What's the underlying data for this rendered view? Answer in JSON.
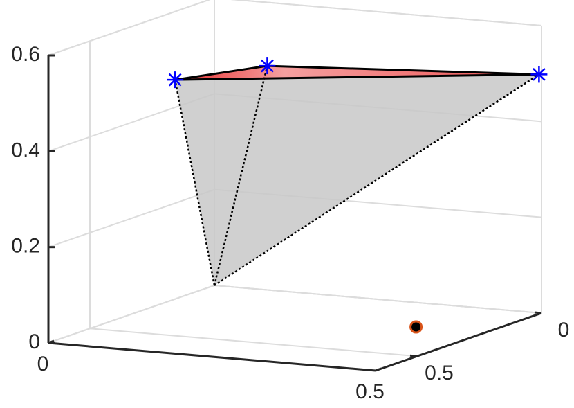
{
  "chart_data": {
    "type": "scatter3",
    "xlim": [
      0,
      0.5
    ],
    "ylim": [
      0,
      0.6667
    ],
    "zlim": [
      0,
      0.6
    ],
    "xticks": [
      0,
      0.5
    ],
    "yticks": [
      0,
      0.5
    ],
    "zticks": [
      0,
      0.2,
      0.4,
      0.6
    ],
    "grid": true,
    "vertices": {
      "x": [
        0.072,
        0.136,
        0.5
      ],
      "y": [
        0.347,
        0.145,
        0.01
      ],
      "z": [
        0.5,
        0.5,
        0.5
      ],
      "color": "#0000ff"
    },
    "apex": {
      "x": 0,
      "y": 0,
      "z": 0
    },
    "point": {
      "x": 0.395,
      "y": 0.228,
      "z": 0,
      "color": "#000000",
      "edgecolor": "#d95319"
    }
  }
}
